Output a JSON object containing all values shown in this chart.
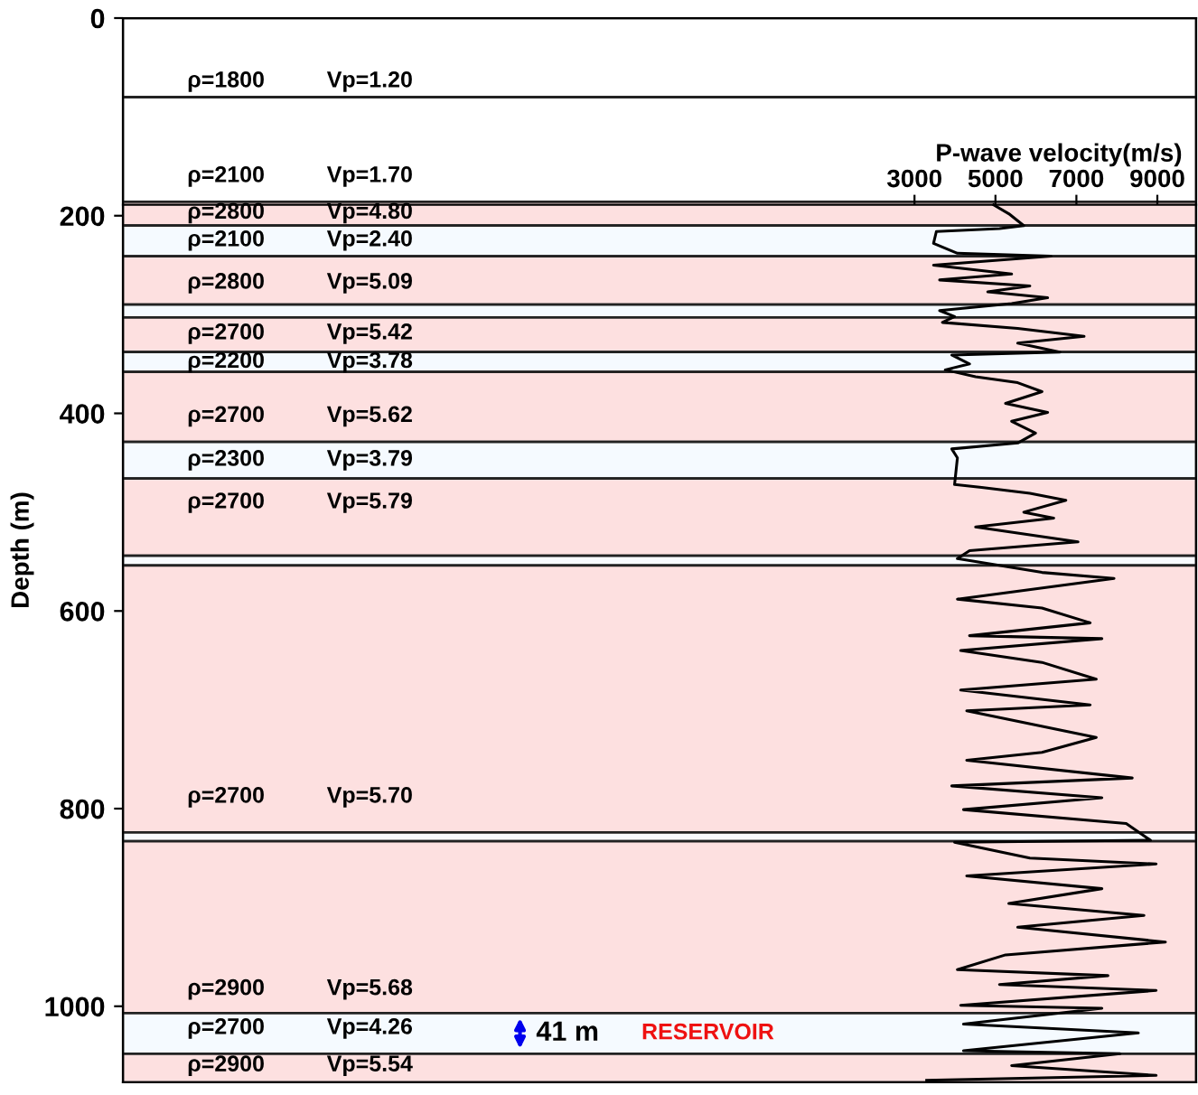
{
  "chart_data": [
    {
      "type": "line",
      "ylabel": "Depth (m)",
      "ylim": [
        1077,
        0
      ],
      "yticks": [
        0,
        200,
        400,
        600,
        800,
        1000
      ],
      "xlabel": "P-wave velocity(m/s)",
      "xlim": [
        -16560,
        9960
      ],
      "xticks": [
        3000,
        5000,
        7000,
        9000
      ],
      "bands": [
        {
          "axis": "y",
          "from": 0,
          "to": 80,
          "color": "#ffffff"
        },
        {
          "axis": "y",
          "from": 80,
          "to": 186,
          "color": "#ffffff"
        },
        {
          "axis": "y",
          "from": 186,
          "to": 210,
          "color": "#fde0e0"
        },
        {
          "axis": "y",
          "from": 210,
          "to": 241,
          "color": "#f5faff"
        },
        {
          "axis": "y",
          "from": 241,
          "to": 290,
          "color": "#fde0e0"
        },
        {
          "axis": "y",
          "from": 290,
          "to": 303,
          "color": "#f5faff"
        },
        {
          "axis": "y",
          "from": 303,
          "to": 338,
          "color": "#fde0e0"
        },
        {
          "axis": "y",
          "from": 338,
          "to": 358,
          "color": "#f5faff"
        },
        {
          "axis": "y",
          "from": 358,
          "to": 429,
          "color": "#fde0e0"
        },
        {
          "axis": "y",
          "from": 429,
          "to": 466,
          "color": "#f5faff"
        },
        {
          "axis": "y",
          "from": 466,
          "to": 544,
          "color": "#fde0e0"
        },
        {
          "axis": "y",
          "from": 544,
          "to": 554,
          "color": "#f8fbff"
        },
        {
          "axis": "y",
          "from": 554,
          "to": 824,
          "color": "#fde0e0"
        },
        {
          "axis": "y",
          "from": 824,
          "to": 833,
          "color": "#f8fbff"
        },
        {
          "axis": "y",
          "from": 833,
          "to": 1007,
          "color": "#fde0e0"
        },
        {
          "axis": "y",
          "from": 1007,
          "to": 1048,
          "color": "#f5faff",
          "label": "RESERVOIR"
        },
        {
          "axis": "y",
          "from": 1048,
          "to": 1077,
          "color": "#fde0e0"
        }
      ],
      "annotations": [
        "ρ=1800",
        "Vp=1.20",
        "ρ=2100",
        "Vp=1.70",
        "ρ=2800",
        "Vp=4.80",
        "ρ=2100",
        "Vp=2.40",
        "ρ=2800",
        "Vp=5.09",
        "ρ=2700",
        "Vp=5.42",
        "ρ=2200",
        "Vp=3.78",
        "ρ=2700",
        "Vp=5.62",
        "ρ=2300",
        "Vp=3.79",
        "ρ=2700",
        "Vp=5.79",
        "ρ=2700",
        "Vp=5.70",
        "ρ=2900",
        "Vp=5.68",
        "ρ=2700",
        "Vp=4.26",
        "ρ=2900",
        "Vp=5.54",
        "41 m"
      ],
      "series": [
        {
          "color": "#000000",
          "x": [
            4955,
            5330,
            5700,
            5100,
            3540,
            3470,
            4060,
            6370,
            3470,
            5400,
            3620,
            5850,
            4810,
            6290,
            5400,
            3620,
            3990,
            3690,
            5550,
            7190,
            5550,
            6590,
            3920,
            4360,
            3760,
            4510,
            5550,
            6150,
            5250,
            6290,
            5400,
            5990,
            5550,
            3920,
            4060,
            3990,
            4660,
            5850,
            6740,
            5700,
            6440,
            4510,
            7040,
            4360,
            4060,
            6150,
            7930,
            4060,
            6150,
            7340,
            4360,
            7630,
            4140,
            6150,
            7490,
            4140,
            7340,
            4290,
            7490,
            6150,
            4290,
            8380,
            3920,
            7630,
            4210,
            8230,
            8830,
            3990,
            5850,
            8970,
            4290,
            7630,
            5330,
            8670,
            5550,
            9200,
            5250,
            4060,
            7780,
            5100,
            8970,
            4140,
            7630,
            4210,
            8530,
            4210,
            8080,
            5400,
            8970,
            3300
          ],
          "values": [
            189,
            198,
            210,
            213,
            216,
            228,
            238,
            241,
            250,
            259,
            265,
            271,
            277,
            283,
            289,
            296,
            302,
            308,
            314,
            322,
            329,
            338,
            341,
            350,
            356,
            363,
            369,
            378,
            390,
            399,
            408,
            420,
            430,
            436,
            445,
            472,
            475,
            481,
            488,
            500,
            506,
            515,
            530,
            539,
            547,
            561,
            567,
            588,
            597,
            612,
            625,
            628,
            640,
            652,
            669,
            680,
            695,
            701,
            728,
            743,
            751,
            769,
            777,
            789,
            801,
            815,
            832,
            834,
            850,
            856,
            868,
            881,
            896,
            908,
            920,
            935,
            948,
            963,
            969,
            978,
            984,
            999,
            1002,
            1018,
            1027,
            1045,
            1048,
            1060,
            1070,
            1075
          ]
        }
      ]
    }
  ]
}
